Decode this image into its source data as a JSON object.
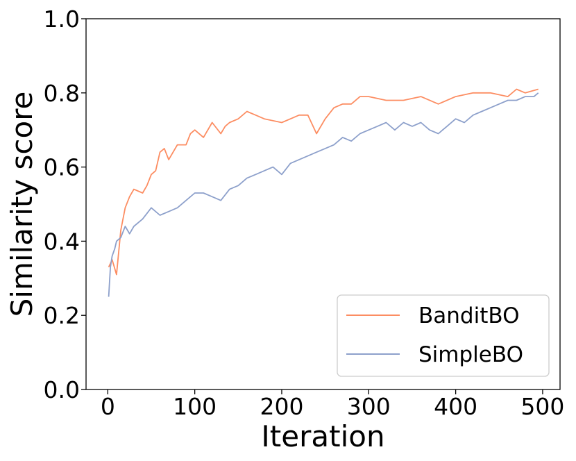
{
  "chart_data": {
    "type": "line",
    "xlabel": "Iteration",
    "ylabel": "Similarity score",
    "xlim": [
      -25,
      520
    ],
    "ylim": [
      0.0,
      1.0
    ],
    "xticks": [
      0,
      100,
      200,
      300,
      400,
      500
    ],
    "yticks": [
      0.0,
      0.2,
      0.4,
      0.6,
      0.8,
      1.0
    ],
    "xtick_labels": [
      "0",
      "100",
      "200",
      "300",
      "400",
      "500"
    ],
    "ytick_labels": [
      "0.0",
      "0.2",
      "0.4",
      "0.6",
      "0.8",
      "1.0"
    ],
    "grid": false,
    "legend_position": "lower-right",
    "series": [
      {
        "name": "BanditBO",
        "color": "#fc8d62",
        "x": [
          1,
          5,
          10,
          15,
          20,
          25,
          30,
          40,
          45,
          50,
          55,
          60,
          65,
          70,
          80,
          90,
          95,
          100,
          110,
          120,
          130,
          135,
          140,
          150,
          160,
          170,
          180,
          200,
          210,
          220,
          230,
          240,
          250,
          260,
          270,
          280,
          290,
          300,
          320,
          340,
          360,
          380,
          400,
          420,
          440,
          460,
          470,
          480,
          495
        ],
        "y": [
          0.33,
          0.35,
          0.31,
          0.43,
          0.49,
          0.52,
          0.54,
          0.53,
          0.55,
          0.58,
          0.59,
          0.64,
          0.65,
          0.62,
          0.66,
          0.66,
          0.69,
          0.7,
          0.68,
          0.72,
          0.69,
          0.71,
          0.72,
          0.73,
          0.75,
          0.74,
          0.73,
          0.72,
          0.73,
          0.74,
          0.74,
          0.69,
          0.73,
          0.76,
          0.77,
          0.77,
          0.79,
          0.79,
          0.78,
          0.78,
          0.79,
          0.77,
          0.79,
          0.8,
          0.8,
          0.79,
          0.81,
          0.8,
          0.81
        ]
      },
      {
        "name": "SimpleBO",
        "color": "#8da0cb",
        "x": [
          1,
          3,
          5,
          8,
          10,
          15,
          20,
          25,
          30,
          40,
          50,
          60,
          70,
          80,
          90,
          100,
          110,
          120,
          130,
          140,
          150,
          160,
          170,
          180,
          190,
          200,
          210,
          220,
          230,
          240,
          250,
          260,
          270,
          280,
          290,
          300,
          310,
          320,
          330,
          340,
          350,
          360,
          370,
          380,
          390,
          400,
          410,
          420,
          430,
          440,
          450,
          460,
          470,
          480,
          490,
          495
        ],
        "y": [
          0.25,
          0.33,
          0.36,
          0.38,
          0.4,
          0.41,
          0.44,
          0.42,
          0.44,
          0.46,
          0.49,
          0.47,
          0.48,
          0.49,
          0.51,
          0.53,
          0.53,
          0.52,
          0.51,
          0.54,
          0.55,
          0.57,
          0.58,
          0.59,
          0.6,
          0.58,
          0.61,
          0.62,
          0.63,
          0.64,
          0.65,
          0.66,
          0.68,
          0.67,
          0.69,
          0.7,
          0.71,
          0.72,
          0.7,
          0.72,
          0.71,
          0.72,
          0.7,
          0.69,
          0.71,
          0.73,
          0.72,
          0.74,
          0.75,
          0.76,
          0.77,
          0.78,
          0.78,
          0.79,
          0.79,
          0.8
        ]
      }
    ]
  }
}
